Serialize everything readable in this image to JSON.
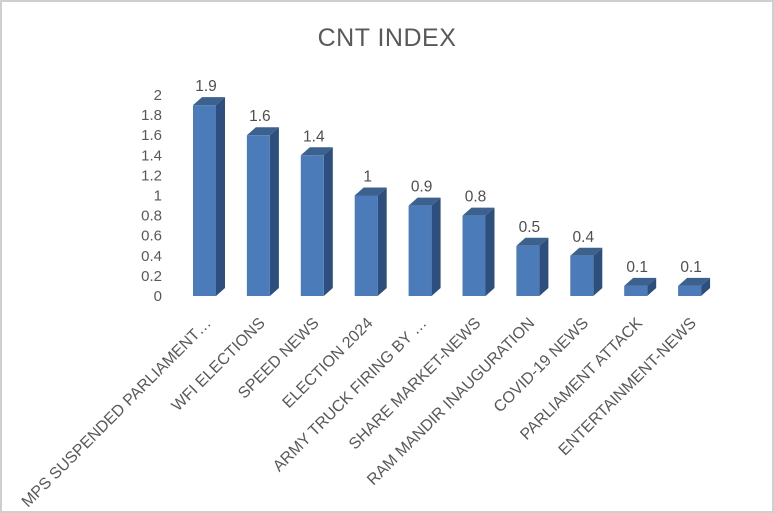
{
  "frame": {
    "background": "#ffffff",
    "border_color": "#cfcfcf"
  },
  "chart_data": {
    "type": "bar",
    "style": "3d-column",
    "title": "CNT INDEX",
    "categories": [
      "MPS SUSPENDED PARLIAMENT…",
      "WFI ELECTIONS",
      "SPEED NEWS",
      "ELECTION 2024",
      "ARMY TRUCK FIRING BY …",
      "SHARE MARKET-NEWS",
      "RAM MANDIR INAUGURATION",
      "COVID-19 NEWS",
      "PARLIAMENT ATTACK",
      "ENTERTAINMENT-NEWS"
    ],
    "values": [
      1.9,
      1.6,
      1.4,
      1,
      0.9,
      0.8,
      0.5,
      0.4,
      0.1,
      0.1
    ],
    "data_labels": [
      "1.9",
      "1.6",
      "1.4",
      "1",
      "0.9",
      "0.8",
      "0.5",
      "0.4",
      "0.1",
      "0.1"
    ],
    "xlabel": "",
    "ylabel": "",
    "ylim": [
      0,
      2
    ],
    "y_ticks": [
      "2",
      "1.8",
      "1.6",
      "1.4",
      "1.2",
      "1",
      "0.8",
      "0.6",
      "0.4",
      "0.2",
      "0"
    ],
    "grid": false,
    "legend": false,
    "category_label_rotation_deg": -45,
    "colors": {
      "bar_front": "#4b7bb8",
      "bar_side": "#2e4f7d",
      "bar_top": "#3c618e",
      "text": "#595959"
    }
  }
}
